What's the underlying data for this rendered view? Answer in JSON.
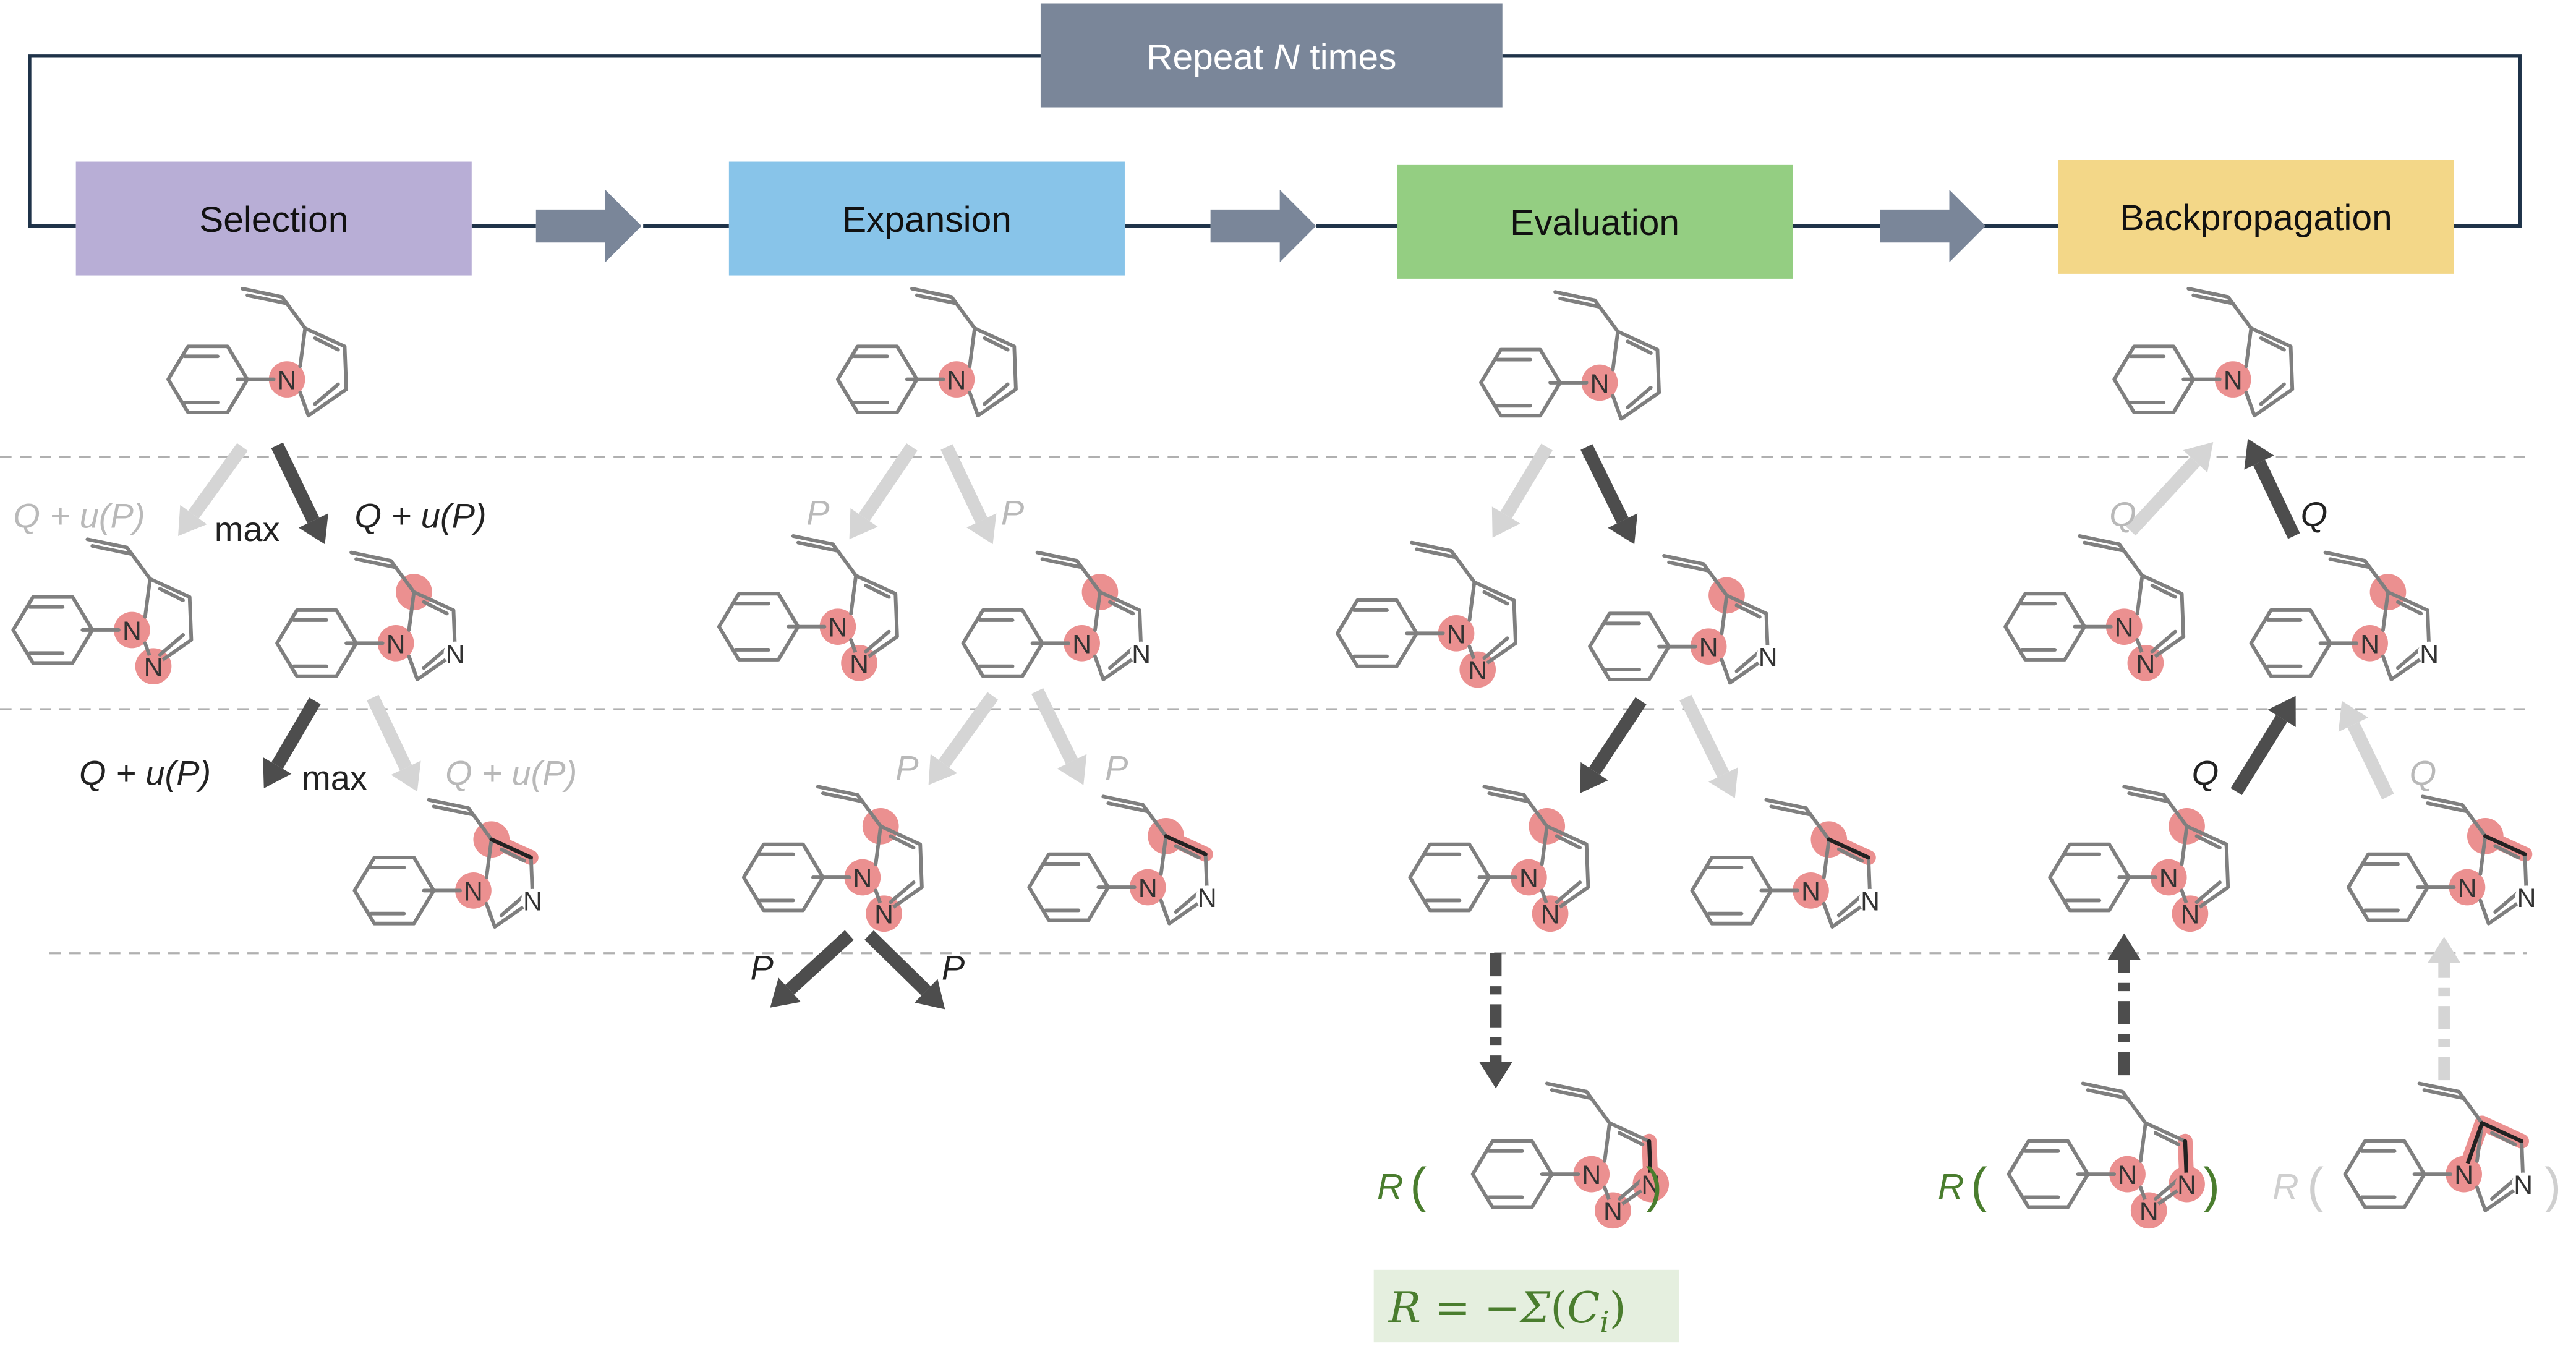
{
  "repeat": {
    "prefix": "Repeat ",
    "n": "N",
    "suffix": " times"
  },
  "stages": [
    {
      "label": "Selection",
      "color": "#b8aed6"
    },
    {
      "label": "Expansion",
      "color": "#88c4e9"
    },
    {
      "label": "Evaluation",
      "color": "#94ce82"
    },
    {
      "label": "Backpropagation",
      "color": "#f3d788"
    }
  ],
  "atom": "N",
  "edge_labels": {
    "q_plus_u": "Q + u(P)",
    "max": "max",
    "p": "P",
    "q": "Q"
  },
  "reward": {
    "r": "R",
    "open_paren": "(",
    "close_paren": ")",
    "formula_lhs": "R",
    "formula_eq": " = −",
    "formula_sigma": "Σ",
    "formula_arg_open": "(",
    "formula_c": "C",
    "formula_sub": "i",
    "formula_arg_close": ")"
  },
  "colors": {
    "frame": "#1f3349",
    "flow_arrow": "#7a8699",
    "repeat_box": "#7a8699",
    "dark_arrow": "#4d4d4d",
    "light_arrow": "#d5d5d5",
    "dark_text": "#222222",
    "light_text": "#b9b9b9",
    "green_text": "#4a7d2e",
    "light_green_text": "#cfcfcf",
    "highlight": "#eb9090",
    "bond": "#7f7f7f",
    "formula_bg": "#e5efdf"
  }
}
